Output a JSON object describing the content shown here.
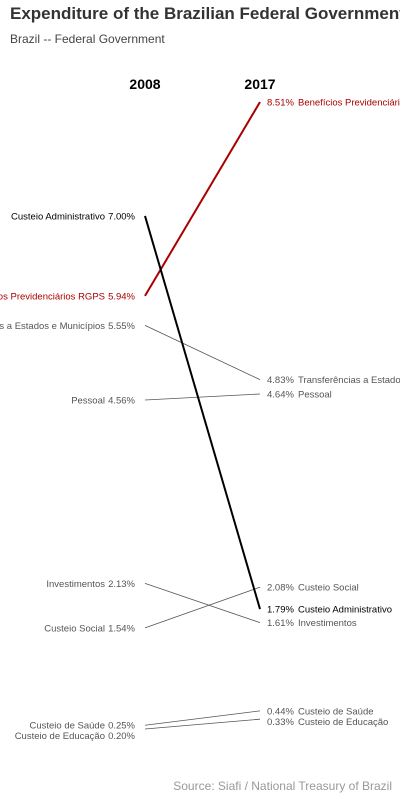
{
  "chart_data": {
    "type": "slope",
    "title": "Expenditure of the Brazilian Federal Government",
    "subtitle": "Brazil -- Federal Government",
    "source": "Source: Siafi / National Treasury of Brazil",
    "x": [
      "2008",
      "2017"
    ],
    "series": [
      {
        "name": "Benefícios Previdenciários RGPS",
        "values": [
          5.94,
          8.51
        ],
        "color": "#aa0000",
        "emphasis": true
      },
      {
        "name": "Custeio Administrativo",
        "values": [
          7.0,
          1.79
        ],
        "color": "#000000",
        "emphasis": true
      },
      {
        "name": "Transferências a Estados e Municípios",
        "values": [
          5.55,
          4.83
        ],
        "color": "#555555",
        "emphasis": false
      },
      {
        "name": "Pessoal",
        "values": [
          4.56,
          4.64
        ],
        "color": "#555555",
        "emphasis": false
      },
      {
        "name": "Investimentos",
        "values": [
          2.13,
          1.61
        ],
        "color": "#555555",
        "emphasis": false
      },
      {
        "name": "Custeio Social",
        "values": [
          1.54,
          2.08
        ],
        "color": "#555555",
        "emphasis": false
      },
      {
        "name": "Custeio de Saúde",
        "values": [
          0.25,
          0.44
        ],
        "color": "#555555",
        "emphasis": false
      },
      {
        "name": "Custeio de Educação",
        "values": [
          0.2,
          0.33
        ],
        "color": "#555555",
        "emphasis": false
      }
    ],
    "value_suffix": "%",
    "ylim": [
      0.2,
      8.51
    ]
  }
}
